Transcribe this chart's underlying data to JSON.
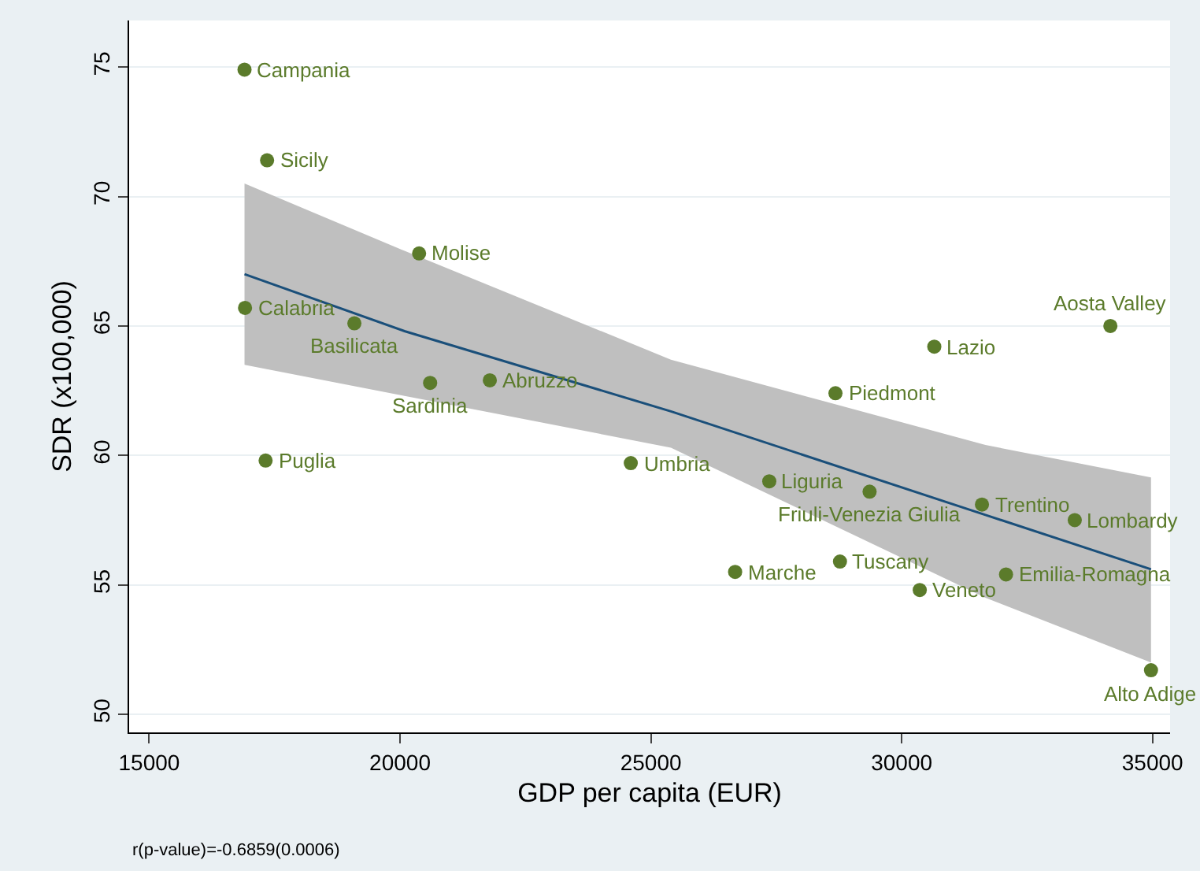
{
  "chart_data": {
    "type": "scatter",
    "xlabel": "GDP per capita (EUR)",
    "ylabel": "SDR (x100,000)",
    "xlim": [
      14600,
      35350
    ],
    "ylim": [
      49.3,
      76.8
    ],
    "xticks": [
      15000,
      20000,
      25000,
      30000,
      35000
    ],
    "yticks": [
      50,
      55,
      60,
      65,
      70,
      75
    ],
    "grid": "y",
    "series": [
      {
        "color": "#5b7b2b",
        "marker": "circle",
        "x": [
          16900,
          17350,
          20380,
          16910,
          19090,
          20600,
          21790,
          17320,
          24600,
          34160,
          30650,
          28680,
          27360,
          29360,
          31600,
          33450,
          26680,
          28770,
          32080,
          30360,
          34970
        ],
        "values": [
          74.9,
          71.4,
          67.8,
          65.7,
          65.1,
          62.8,
          62.9,
          59.8,
          59.7,
          65.0,
          64.2,
          62.4,
          59.0,
          58.6,
          58.1,
          57.5,
          55.5,
          55.9,
          55.4,
          54.8,
          51.7
        ]
      },
      {
        "type": "line",
        "color": "#1a4f7a",
        "x": [
          16900,
          20090,
          25400,
          31670,
          34970
        ],
        "values": [
          67.0,
          64.8,
          61.7,
          57.7,
          55.6
        ],
        "lower": [
          63.5,
          62.3,
          60.3,
          54.5,
          52.0
        ],
        "upper": [
          70.5,
          67.9,
          63.7,
          60.4,
          59.15
        ]
      }
    ],
    "annotations": [
      {
        "text": "Campania",
        "x": 16900,
        "y": 74.9
      },
      {
        "text": "Sicily",
        "x": 17350,
        "y": 71.4
      },
      {
        "text": "Molise",
        "x": 20380,
        "y": 67.8
      },
      {
        "text": "Calabria",
        "x": 16910,
        "y": 65.7
      },
      {
        "text": "Basilicata",
        "x": 19090,
        "y": 65.1
      },
      {
        "text": "Sardinia",
        "x": 20600,
        "y": 62.8
      },
      {
        "text": "Abruzzo",
        "x": 21790,
        "y": 62.9
      },
      {
        "text": "Puglia",
        "x": 17320,
        "y": 59.8
      },
      {
        "text": "Umbria",
        "x": 24600,
        "y": 59.7
      },
      {
        "text": "Aosta Valley",
        "x": 34160,
        "y": 65.0
      },
      {
        "text": "Lazio",
        "x": 30650,
        "y": 64.2
      },
      {
        "text": "Piedmont",
        "x": 28680,
        "y": 62.4
      },
      {
        "text": "Liguria",
        "x": 27360,
        "y": 59.0
      },
      {
        "text": "Friuli-Venezia Giulia",
        "x": 29360,
        "y": 58.6
      },
      {
        "text": "Trentino",
        "x": 31600,
        "y": 58.1
      },
      {
        "text": "Lombardy",
        "x": 33450,
        "y": 57.5
      },
      {
        "text": "Marche",
        "x": 26680,
        "y": 55.5
      },
      {
        "text": "Tuscany",
        "x": 28770,
        "y": 55.9
      },
      {
        "text": "Emilia-Romagna",
        "x": 32080,
        "y": 55.4
      },
      {
        "text": "Veneto",
        "x": 30360,
        "y": 54.8
      },
      {
        "text": "Alto Adige",
        "x": 34970,
        "y": 51.7
      },
      "r(p-value)=-0.6859(0.0006)"
    ]
  }
}
